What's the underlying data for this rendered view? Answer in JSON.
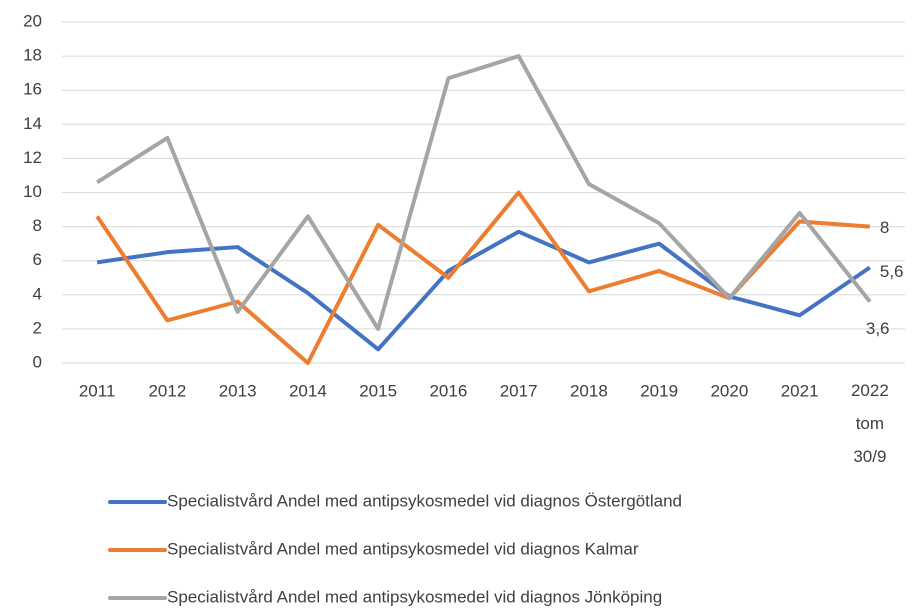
{
  "chart_data": {
    "type": "line",
    "categories": [
      "2011",
      "2012",
      "2013",
      "2014",
      "2015",
      "2016",
      "2017",
      "2018",
      "2019",
      "2020",
      "2021",
      "2022 tom 30/9"
    ],
    "series": [
      {
        "name": "Specialistvård Andel med antipsykosmedel vid diagnos Östergötland",
        "color": "#4472c4",
        "values": [
          5.9,
          6.5,
          6.8,
          4.1,
          0.8,
          5.4,
          7.7,
          5.9,
          7.0,
          3.9,
          2.8,
          5.6
        ],
        "value_labels": [
          null,
          null,
          null,
          null,
          null,
          null,
          null,
          null,
          null,
          null,
          null,
          "5,6"
        ]
      },
      {
        "name": "Specialistvård Andel med antipsykosmedel vid diagnos Kalmar",
        "color": "#ed7d31",
        "values": [
          8.6,
          2.5,
          3.6,
          0,
          8.1,
          5.0,
          10.0,
          4.2,
          5.4,
          3.8,
          8.3,
          8
        ],
        "value_labels": [
          null,
          null,
          null,
          null,
          null,
          null,
          null,
          null,
          null,
          null,
          null,
          "8"
        ]
      },
      {
        "name": "Specialistvård Andel med antipsykosmedel vid diagnos Jönköping",
        "color": "#a5a5a5",
        "values": [
          10.6,
          13.2,
          3.0,
          8.6,
          2.0,
          16.7,
          18.0,
          10.5,
          8.2,
          3.8,
          8.8,
          3.6
        ],
        "value_labels": [
          null,
          null,
          null,
          null,
          null,
          null,
          null,
          null,
          null,
          null,
          null,
          "3,6"
        ]
      }
    ],
    "ylim": [
      0,
      20
    ],
    "yticks": [
      0,
      2,
      4,
      6,
      8,
      10,
      12,
      14,
      16,
      18,
      20
    ],
    "grid": true,
    "legend": "bottom"
  }
}
